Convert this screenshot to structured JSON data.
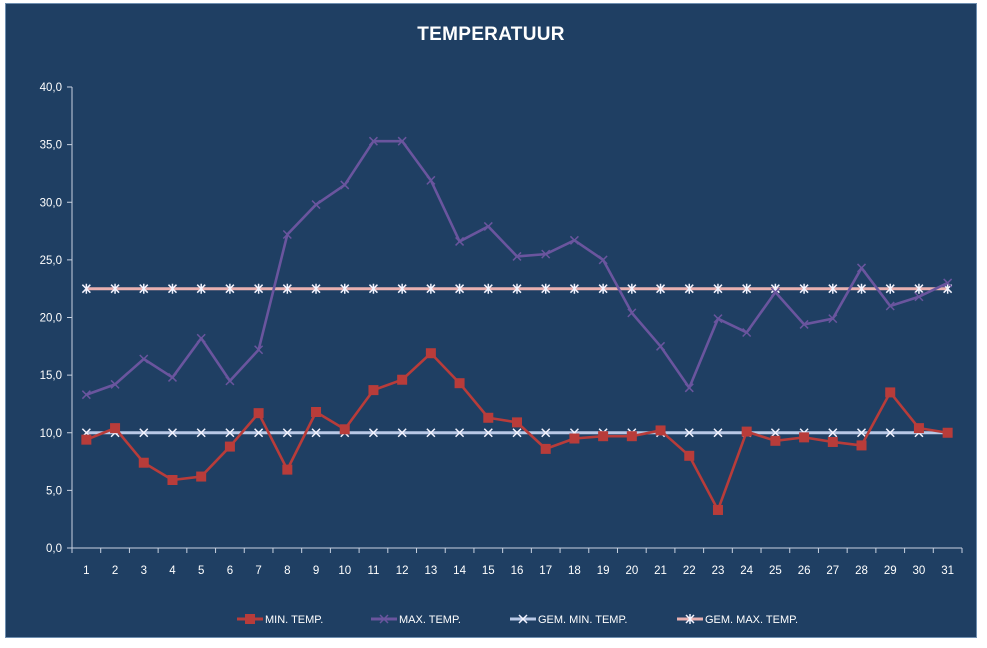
{
  "chart_data": {
    "type": "line",
    "title": "TEMPERATUUR",
    "xlabel": "",
    "ylabel": "",
    "ylim": [
      0,
      40
    ],
    "y_tick_labels": [
      "0,0",
      "5,0",
      "10,0",
      "15,0",
      "20,0",
      "25,0",
      "30,0",
      "35,0",
      "40,0"
    ],
    "categories": [
      "1",
      "2",
      "3",
      "4",
      "5",
      "6",
      "7",
      "8",
      "9",
      "10",
      "11",
      "12",
      "13",
      "14",
      "15",
      "16",
      "17",
      "18",
      "19",
      "20",
      "21",
      "22",
      "23",
      "24",
      "25",
      "26",
      "27",
      "28",
      "29",
      "30",
      "31"
    ],
    "series": [
      {
        "name": "MIN. TEMP.",
        "color": "#b83c3a",
        "marker": "square",
        "values": [
          9.4,
          10.4,
          7.4,
          5.9,
          6.2,
          8.8,
          11.7,
          6.8,
          11.8,
          10.3,
          13.7,
          14.6,
          16.9,
          14.3,
          11.3,
          10.9,
          8.6,
          9.5,
          9.7,
          9.7,
          10.2,
          8.0,
          3.3,
          10.1,
          9.3,
          9.6,
          9.2,
          8.9,
          13.5,
          10.4,
          10.0
        ]
      },
      {
        "name": "MAX. TEMP.",
        "color": "#6a559e",
        "marker": "x",
        "values": [
          13.3,
          14.2,
          16.4,
          14.8,
          18.2,
          14.5,
          17.2,
          27.2,
          29.8,
          31.5,
          35.3,
          35.3,
          31.9,
          26.6,
          27.9,
          25.3,
          25.5,
          26.7,
          25.0,
          20.4,
          17.5,
          13.9,
          19.9,
          18.7,
          22.2,
          19.4,
          19.9,
          24.3,
          21.0,
          21.8,
          23.0
        ]
      },
      {
        "name": "GEM. MIN. TEMP.",
        "color": "#b8c8e6",
        "marker": "x",
        "values": [
          10.0,
          10.0,
          10.0,
          10.0,
          10.0,
          10.0,
          10.0,
          10.0,
          10.0,
          10.0,
          10.0,
          10.0,
          10.0,
          10.0,
          10.0,
          10.0,
          10.0,
          10.0,
          10.0,
          10.0,
          10.0,
          10.0,
          10.0,
          10.0,
          10.0,
          10.0,
          10.0,
          10.0,
          10.0,
          10.0,
          10.0
        ]
      },
      {
        "name": "GEM. MAX. TEMP.",
        "color": "#e8b0b0",
        "marker": "asterisk",
        "values": [
          22.5,
          22.5,
          22.5,
          22.5,
          22.5,
          22.5,
          22.5,
          22.5,
          22.5,
          22.5,
          22.5,
          22.5,
          22.5,
          22.5,
          22.5,
          22.5,
          22.5,
          22.5,
          22.5,
          22.5,
          22.5,
          22.5,
          22.5,
          22.5,
          22.5,
          22.5,
          22.5,
          22.5,
          22.5,
          22.5,
          22.5
        ]
      }
    ],
    "grid": false,
    "legend_position": "bottom"
  }
}
